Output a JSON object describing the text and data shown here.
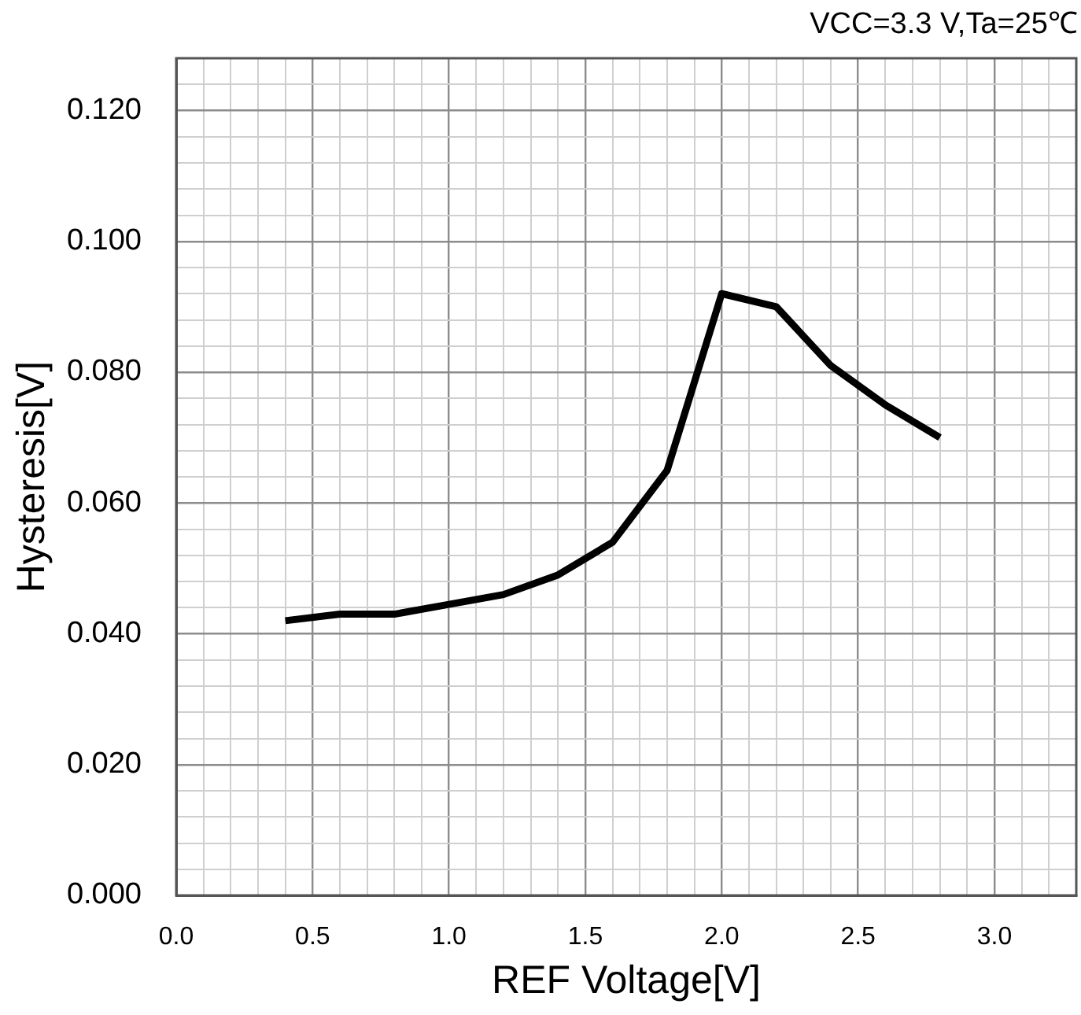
{
  "chart_data": {
    "type": "line",
    "xlabel": "REF Voltage[V]",
    "ylabel": "Hysteresis[V]",
    "annotations": [
      "VCC=3.3 V,Ta=25℃"
    ],
    "x": [
      0.4,
      0.6,
      0.8,
      1.0,
      1.2,
      1.4,
      1.6,
      1.8,
      2.0,
      2.2,
      2.4,
      2.6,
      2.8
    ],
    "values": [
      0.042,
      0.043,
      0.043,
      0.0445,
      0.046,
      0.049,
      0.054,
      0.065,
      0.092,
      0.09,
      0.081,
      0.075,
      0.07
    ],
    "color": "#000000",
    "line_style": "solid",
    "grid": true,
    "legend": false,
    "xlim": [
      0,
      3.3
    ],
    "xticks": [
      {
        "value": 0,
        "label": "0.0"
      },
      {
        "value": 0.1,
        "label": null
      },
      {
        "value": 0.2,
        "label": null
      },
      {
        "value": 0.3,
        "label": null
      },
      {
        "value": 0.4,
        "label": null
      },
      {
        "value": 0.5,
        "label": "0.5"
      },
      {
        "value": 0.6,
        "label": null
      },
      {
        "value": 0.7,
        "label": null
      },
      {
        "value": 0.8,
        "label": null
      },
      {
        "value": 0.9,
        "label": null
      },
      {
        "value": 1.0,
        "label": "1.0"
      },
      {
        "value": 1.1,
        "label": null
      },
      {
        "value": 1.2,
        "label": null
      },
      {
        "value": 1.3,
        "label": null
      },
      {
        "value": 1.4,
        "label": null
      },
      {
        "value": 1.5,
        "label": "1.5"
      },
      {
        "value": 1.6,
        "label": null
      },
      {
        "value": 1.7,
        "label": null
      },
      {
        "value": 1.8,
        "label": null
      },
      {
        "value": 1.9,
        "label": null
      },
      {
        "value": 2.0,
        "label": "2.0"
      },
      {
        "value": 2.1,
        "label": null
      },
      {
        "value": 2.2,
        "label": null
      },
      {
        "value": 2.3,
        "label": null
      },
      {
        "value": 2.4,
        "label": null
      },
      {
        "value": 2.5,
        "label": "2.5"
      },
      {
        "value": 2.6,
        "label": null
      },
      {
        "value": 2.7,
        "label": null
      },
      {
        "value": 2.8,
        "label": null
      },
      {
        "value": 2.9,
        "label": null
      },
      {
        "value": 3.0,
        "label": "3.0"
      },
      {
        "value": 3.1,
        "label": null
      },
      {
        "value": 3.2,
        "label": null
      },
      {
        "value": 3.3,
        "label": null
      }
    ],
    "ylim": [
      0,
      0.128
    ],
    "yticks": [
      {
        "value": 0,
        "label": "0.000"
      },
      {
        "value": 0.004,
        "label": null
      },
      {
        "value": 0.008,
        "label": null
      },
      {
        "value": 0.012,
        "label": null
      },
      {
        "value": 0.016,
        "label": null
      },
      {
        "value": 0.02,
        "label": "0.020"
      },
      {
        "value": 0.024,
        "label": null
      },
      {
        "value": 0.028,
        "label": null
      },
      {
        "value": 0.032,
        "label": null
      },
      {
        "value": 0.036,
        "label": null
      },
      {
        "value": 0.04,
        "label": "0.040"
      },
      {
        "value": 0.044,
        "label": null
      },
      {
        "value": 0.048,
        "label": null
      },
      {
        "value": 0.052,
        "label": null
      },
      {
        "value": 0.056,
        "label": null
      },
      {
        "value": 0.06,
        "label": "0.060"
      },
      {
        "value": 0.064,
        "label": null
      },
      {
        "value": 0.068,
        "label": null
      },
      {
        "value": 0.072,
        "label": null
      },
      {
        "value": 0.076,
        "label": null
      },
      {
        "value": 0.08,
        "label": "0.080"
      },
      {
        "value": 0.084,
        "label": null
      },
      {
        "value": 0.088,
        "label": null
      },
      {
        "value": 0.092,
        "label": null
      },
      {
        "value": 0.096,
        "label": null
      },
      {
        "value": 0.1,
        "label": "0.100"
      },
      {
        "value": 0.104,
        "label": null
      },
      {
        "value": 0.108,
        "label": null
      },
      {
        "value": 0.112,
        "label": null
      },
      {
        "value": 0.116,
        "label": null
      },
      {
        "value": 0.12,
        "label": "0.120"
      },
      {
        "value": 0.124,
        "label": null
      },
      {
        "value": 0.128,
        "label": null
      }
    ]
  }
}
